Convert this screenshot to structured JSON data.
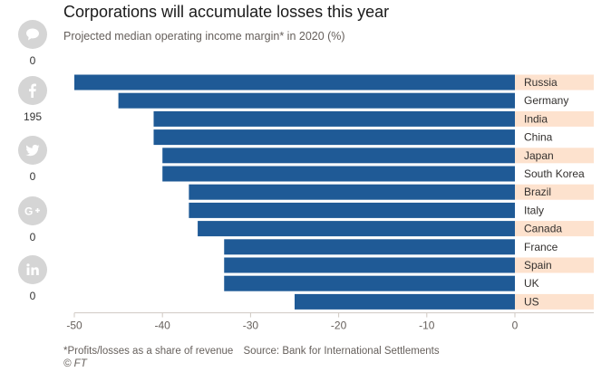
{
  "chart_data": {
    "type": "bar",
    "orientation": "horizontal",
    "title": "Corporations will accumulate losses this year",
    "subtitle": "Projected median operating income margin* in 2020 (%)",
    "categories": [
      "Russia",
      "Germany",
      "India",
      "China",
      "Japan",
      "South Korea",
      "Brazil",
      "Italy",
      "Canada",
      "France",
      "Spain",
      "UK",
      "US"
    ],
    "values": [
      -50,
      -45,
      -41,
      -41,
      -40,
      -40,
      -37,
      -37,
      -36,
      -33,
      -33,
      -33,
      -25
    ],
    "xlim": [
      -50,
      0
    ],
    "x_ticks": [
      -50,
      -40,
      -30,
      -20,
      -10,
      0
    ],
    "xlabel": "",
    "ylabel": "",
    "grid": false,
    "bar_color": "#1f5a96",
    "label_band_color": "#fde2ce",
    "band_rows": [
      0,
      2,
      4,
      6,
      8,
      10,
      12
    ]
  },
  "footnote": {
    "note": "*Profits/losses as a share of revenue",
    "source": "Source: Bank for International Settlements",
    "copyright": "© FT"
  },
  "share": {
    "items": [
      {
        "name": "comment",
        "icon": "speech-bubble-icon",
        "count": "0"
      },
      {
        "name": "facebook",
        "icon": "facebook-icon",
        "count": "195"
      },
      {
        "name": "twitter",
        "icon": "twitter-icon",
        "count": "0"
      },
      {
        "name": "googleplus",
        "icon": "google-plus-icon",
        "count": "0"
      },
      {
        "name": "linkedin",
        "icon": "linkedin-icon",
        "count": "0"
      }
    ],
    "color": "#d5d5d5"
  }
}
